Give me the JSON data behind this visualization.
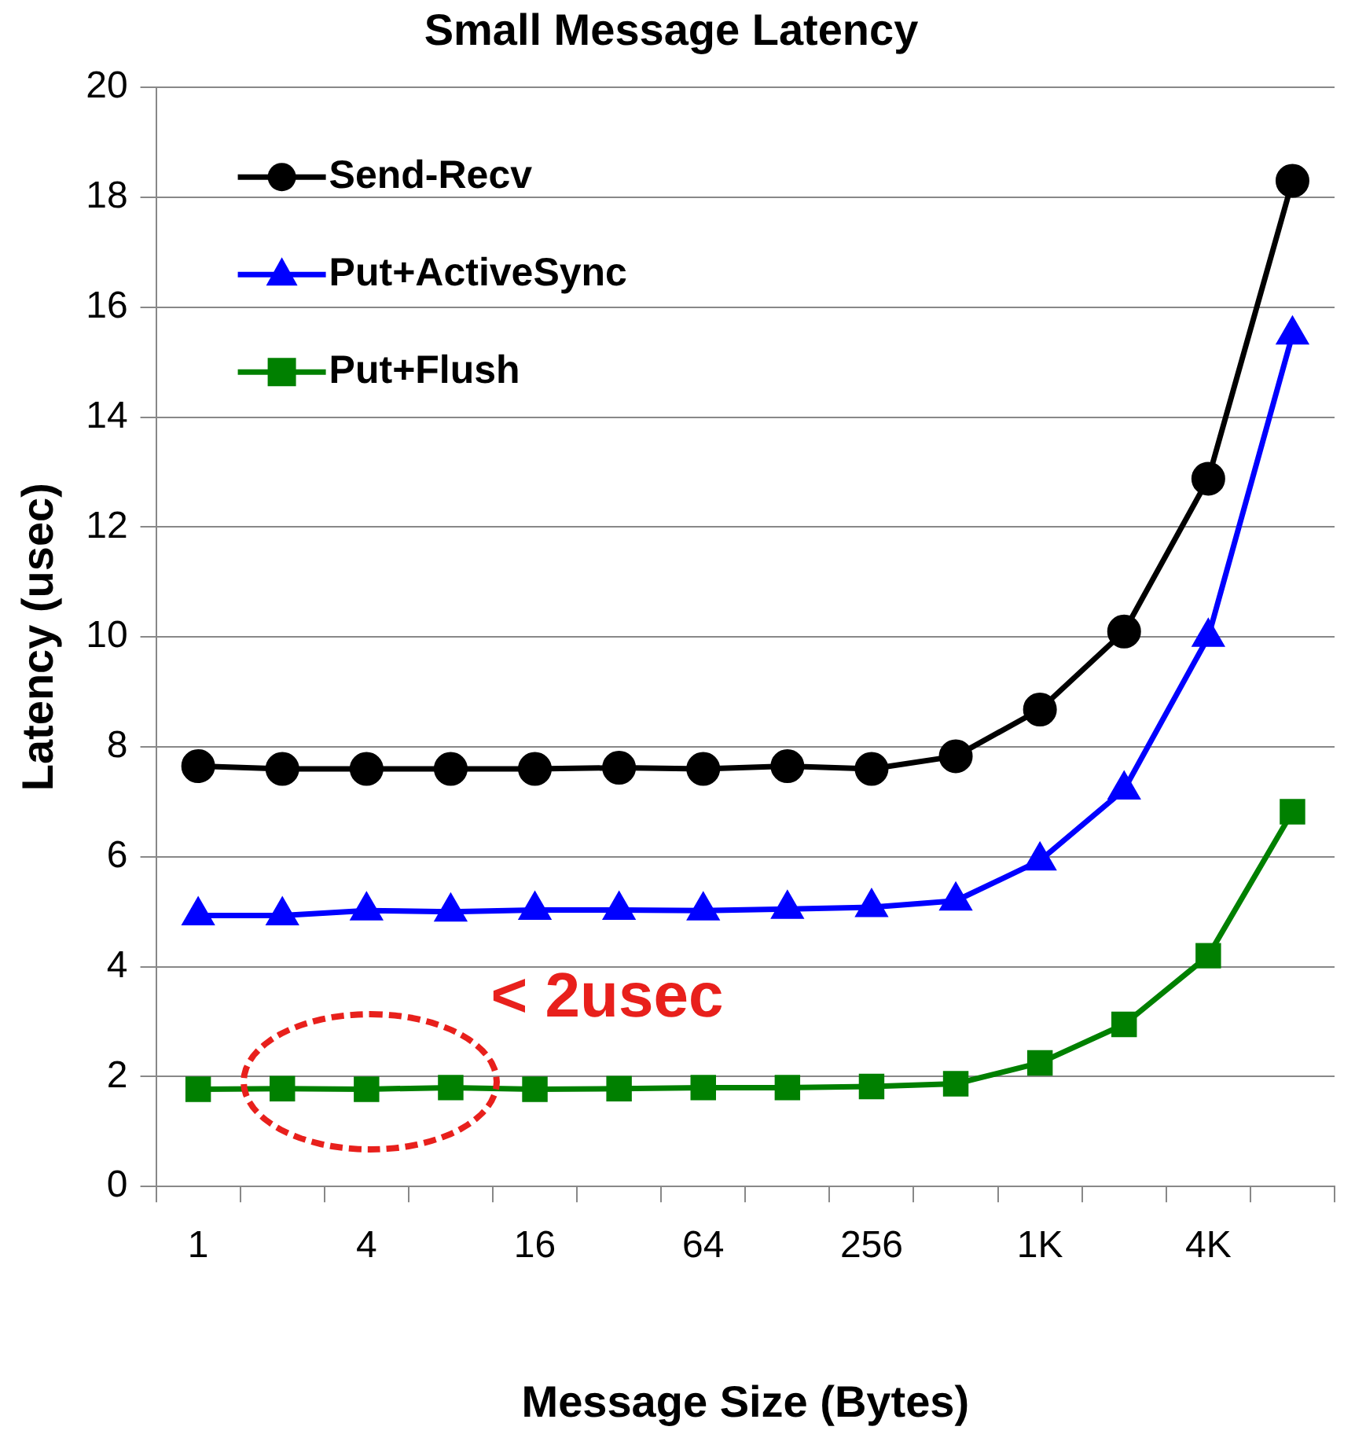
{
  "chart_data": {
    "type": "line",
    "title": "Small Message Latency",
    "xlabel": "Message Size (Bytes)",
    "ylabel": "Latency (usec)",
    "categories": [
      "1",
      null,
      "4",
      null,
      "16",
      null,
      "64",
      null,
      "256",
      null,
      "1K",
      null,
      "4K",
      null
    ],
    "series": [
      {
        "name": "Send-Recv",
        "color": "#000000",
        "marker": "circle",
        "values": [
          7.65,
          7.6,
          7.6,
          7.6,
          7.6,
          7.62,
          7.6,
          7.65,
          7.6,
          7.83,
          8.68,
          10.1,
          12.88,
          18.3
        ]
      },
      {
        "name": "Put+ActiveSync",
        "color": "#0000ff",
        "marker": "triangle",
        "values": [
          4.93,
          4.93,
          5.02,
          5.0,
          5.03,
          5.03,
          5.02,
          5.05,
          5.08,
          5.2,
          5.93,
          7.22,
          10.0,
          15.5
        ]
      },
      {
        "name": "Put+Flush",
        "color": "#008000",
        "marker": "square",
        "values": [
          1.77,
          1.78,
          1.77,
          1.8,
          1.77,
          1.78,
          1.8,
          1.8,
          1.82,
          1.87,
          2.25,
          2.95,
          4.2,
          6.82
        ]
      }
    ],
    "ylim": [
      0,
      20
    ],
    "yticks": [
      0,
      2,
      4,
      6,
      8,
      10,
      12,
      14,
      16,
      18,
      20
    ],
    "grid": "y",
    "legend": "top left",
    "annotations": [
      "< 2usec"
    ]
  }
}
